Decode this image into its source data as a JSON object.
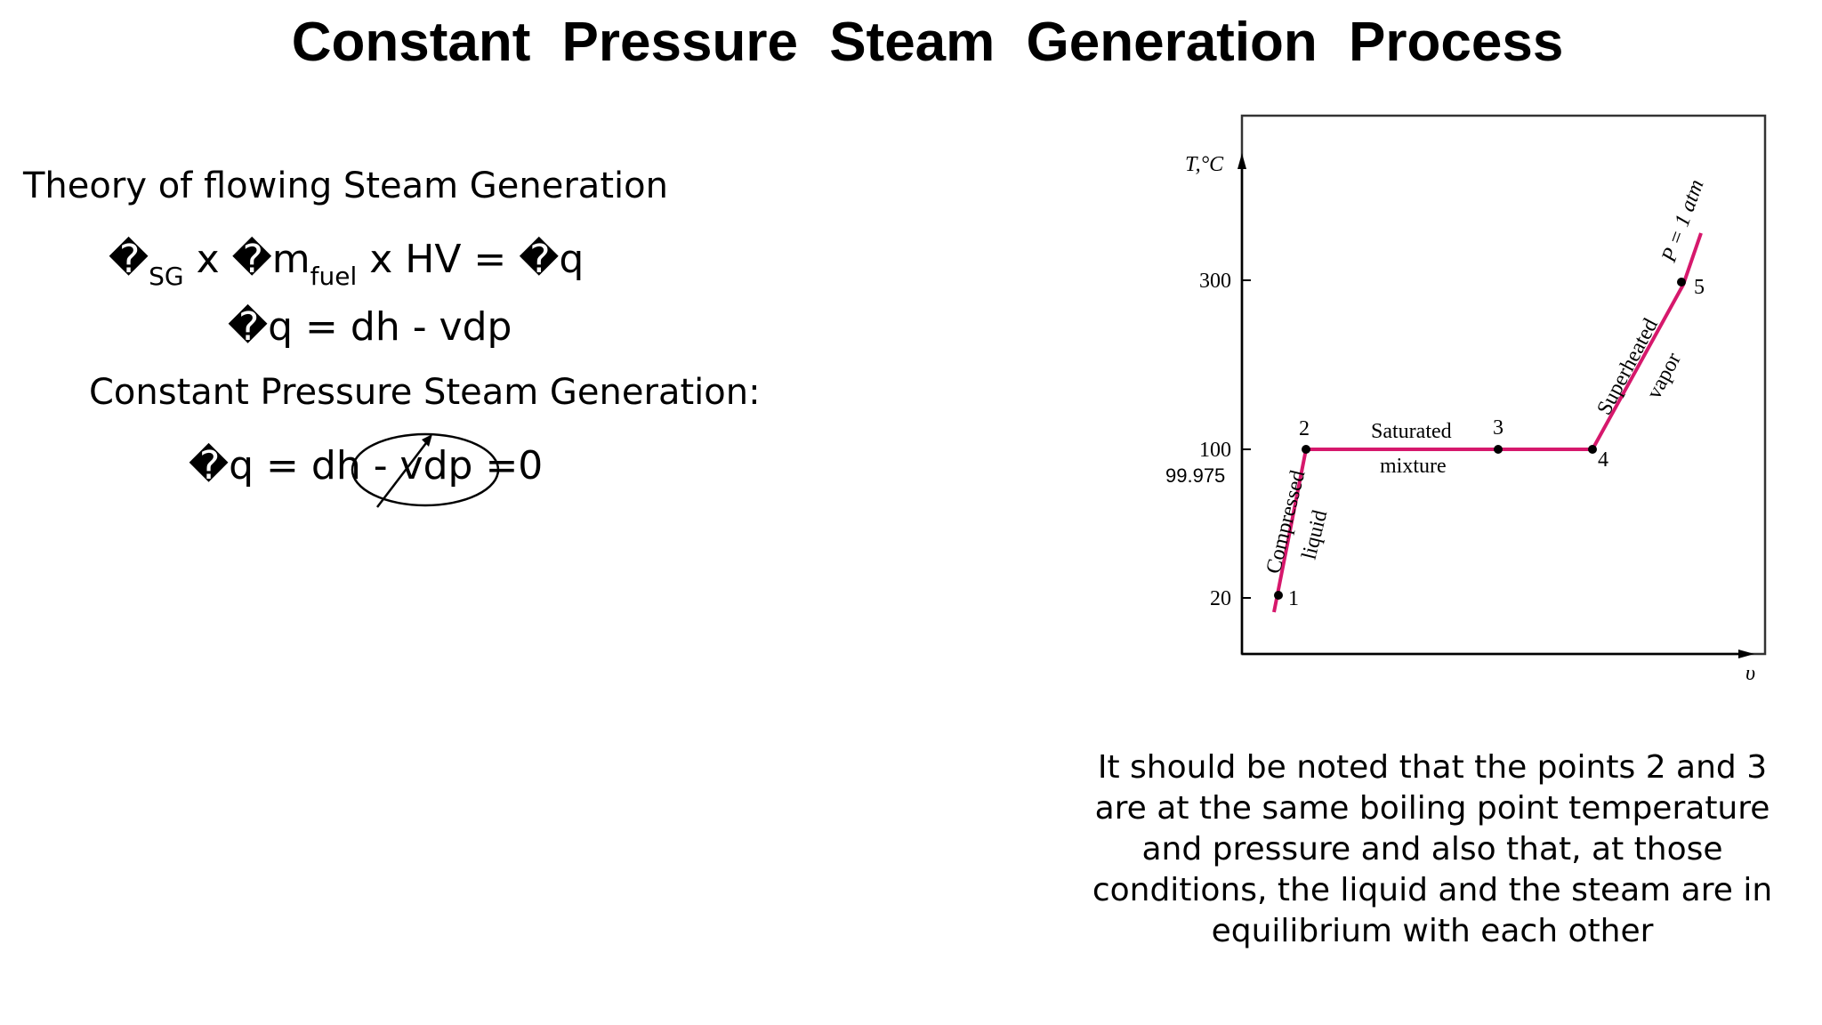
{
  "slide": {
    "title": "Constant  Pressure  Steam  Generation  Process",
    "heading1": "Theory of flowing Steam Generation",
    "eq1": {
      "a": "�",
      "sub_sg": "SG",
      "b": " x �m",
      "sub_fuel": "fuel",
      "c": " x HV = �q"
    },
    "eq2": "�q = dh - vdp",
    "heading2": "Constant Pressure Steam Generation:",
    "eq3": "�q = dh - vdp =0",
    "note": "It should be noted that the points 2 and 3 are at the same boiling point temperature and pressure and also that, at those conditions, the liquid and the steam are in equilibrium with each other"
  },
  "diagram": {
    "y_axis_label": "T,°C",
    "x_axis_label": "υ",
    "ticks": [
      "300",
      "100",
      "20"
    ],
    "extra_tick": "99.975",
    "points": [
      "1",
      "2",
      "3",
      "4",
      "5"
    ],
    "regions": {
      "compressed_1": "Compressed",
      "compressed_2": "liquid",
      "saturated_1": "Saturated",
      "saturated_2": "mixture",
      "superheated_1": "Superheated",
      "superheated_2": "vapor",
      "pressure": "P = 1 atm"
    },
    "colors": {
      "process_line": "#d6186c",
      "axis": "#000000",
      "frame": "#333333"
    }
  }
}
